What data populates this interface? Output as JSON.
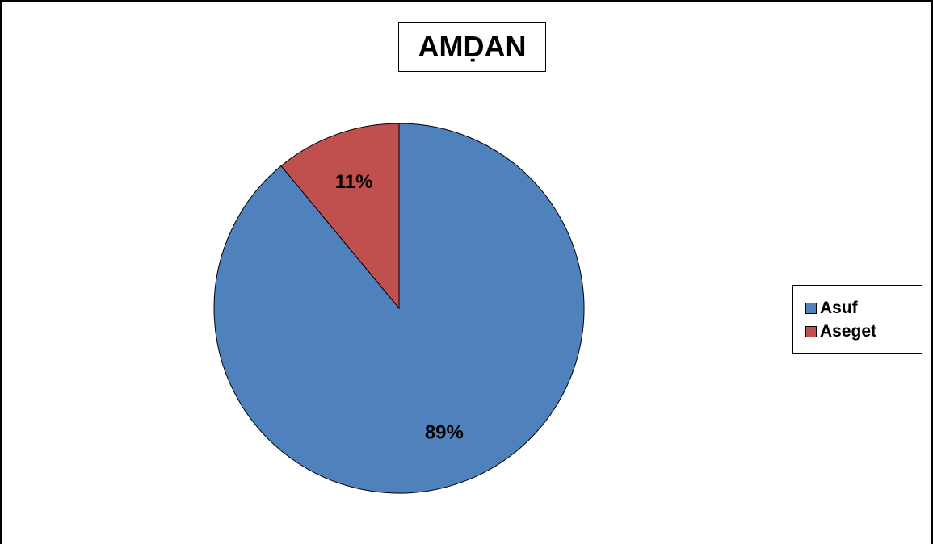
{
  "chart_data": {
    "type": "pie",
    "title": "AMḌAN",
    "categories": [
      "Asuf",
      "Aseget"
    ],
    "values": [
      89,
      11
    ],
    "value_labels": [
      "89%",
      "11%"
    ],
    "colors": [
      "#4F81BD",
      "#C0504D"
    ],
    "legend_position": "right",
    "start_angle": "top-clockwise"
  }
}
